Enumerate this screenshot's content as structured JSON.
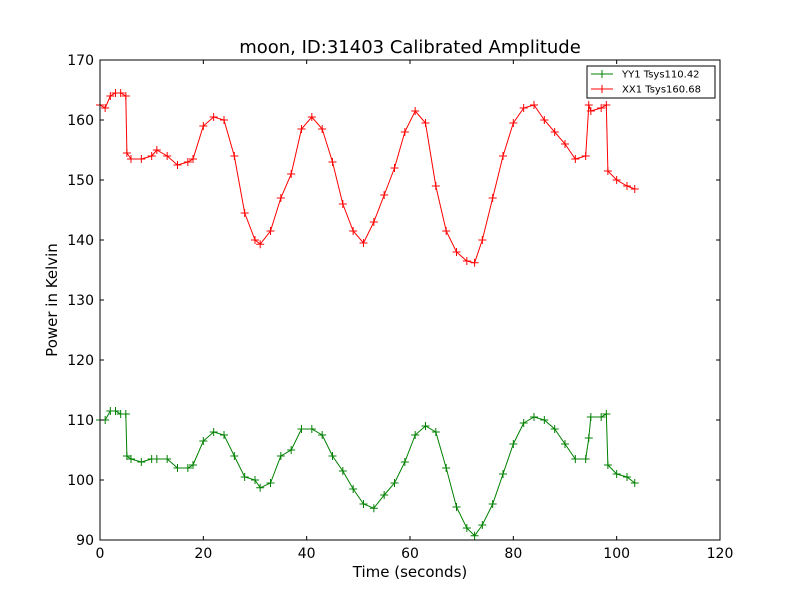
{
  "chart_data": {
    "type": "line",
    "title": "moon, ID:31403 Calibrated Amplitude",
    "xlabel": "Time (seconds)",
    "ylabel": "Power in Kelvin",
    "xlim": [
      0,
      120
    ],
    "ylim": [
      90,
      170
    ],
    "xticks": [
      0,
      20,
      40,
      60,
      80,
      100,
      120
    ],
    "yticks": [
      90,
      100,
      110,
      120,
      130,
      140,
      150,
      160,
      170
    ],
    "grid": false,
    "legend_position": "top-right",
    "marker": "plus",
    "series": [
      {
        "name": "YY1 Tsys110.42",
        "color": "#008000",
        "x": [
          0,
          1,
          2,
          3,
          4,
          5,
          5.2,
          6,
          8,
          10,
          11,
          13,
          15,
          17,
          18,
          20,
          22,
          24,
          26,
          28,
          30,
          31,
          33,
          35,
          37,
          39,
          41,
          43,
          45,
          47,
          49,
          51,
          53,
          55,
          57,
          59,
          61,
          63,
          65,
          67,
          69,
          71,
          72.5,
          74,
          76,
          78,
          80,
          82,
          84,
          86,
          88,
          90,
          92,
          94,
          94.6,
          95,
          97,
          98,
          98.3,
          100,
          102,
          103.5
        ],
        "y": [
          110,
          110,
          111.5,
          111.5,
          111,
          111,
          104,
          103.5,
          103,
          103.5,
          103.5,
          103.5,
          102,
          102,
          102.5,
          106.5,
          108,
          107.5,
          104,
          100.5,
          100,
          98.7,
          99.5,
          104,
          105,
          108.5,
          108.5,
          107.5,
          104,
          101.5,
          98.5,
          96,
          95.3,
          97.5,
          99.5,
          103,
          107.5,
          109,
          108,
          102,
          95.5,
          92,
          90.7,
          92.5,
          96,
          101,
          106,
          109.5,
          110.5,
          110,
          108.5,
          106,
          103.5,
          103.5,
          107,
          110.5,
          110.5,
          111,
          102.5,
          101,
          100.5,
          99.5
        ]
      },
      {
        "name": "XX1 Tsys160.68",
        "color": "#ff0000",
        "x": [
          0,
          1,
          2,
          3,
          4,
          5,
          5.2,
          6,
          8,
          10,
          11,
          13,
          15,
          17,
          18,
          20,
          22,
          24,
          26,
          28,
          30,
          31,
          33,
          35,
          37,
          39,
          41,
          43,
          45,
          47,
          49,
          51,
          53,
          55,
          57,
          59,
          61,
          63,
          65,
          67,
          69,
          71,
          72.5,
          74,
          76,
          78,
          80,
          82,
          84,
          86,
          88,
          90,
          92,
          94,
          94.6,
          95,
          97,
          98,
          98.3,
          100,
          102,
          103.5
        ],
        "y": [
          162.5,
          162,
          164,
          164.5,
          164.5,
          164,
          154.5,
          153.5,
          153.5,
          154,
          155,
          154,
          152.5,
          153,
          153.5,
          159,
          160.5,
          160,
          154,
          144.5,
          140,
          139.3,
          141.5,
          147,
          151,
          158.5,
          160.5,
          158.5,
          153,
          146,
          141.5,
          139.5,
          143,
          147.5,
          152,
          158,
          161.5,
          159.5,
          149,
          141.5,
          138,
          136.5,
          136.2,
          140,
          147,
          154,
          159.5,
          162,
          162.5,
          160,
          158,
          156,
          153.5,
          154,
          162.5,
          161.5,
          162,
          162.5,
          151.5,
          150,
          149,
          148.5
        ]
      }
    ]
  }
}
